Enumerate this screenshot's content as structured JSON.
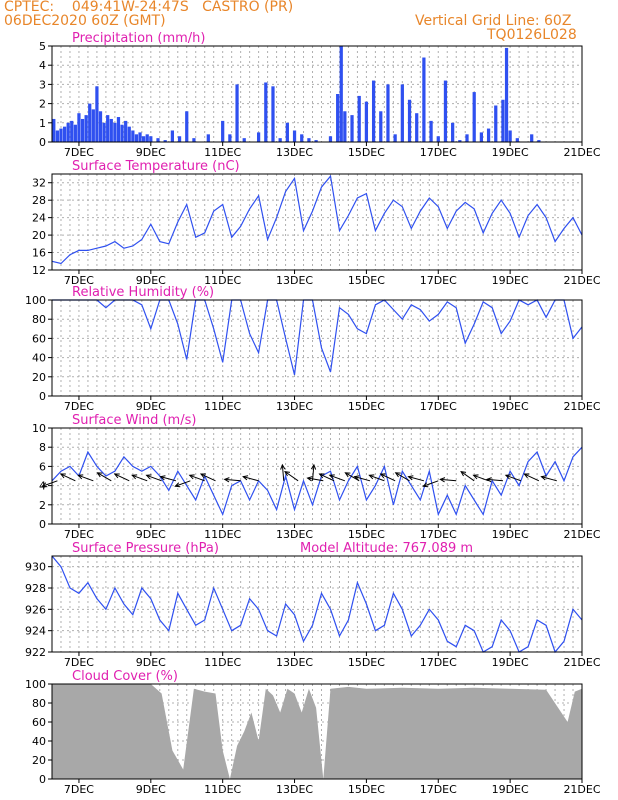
{
  "header": {
    "line1_left": "CPTEC:    049:41W-24:47S   CASTRO (PR)",
    "line2_left": "06DEC2020 60Z (GMT)",
    "line1_right": "Vertical Grid Line: 60Z",
    "line2_right": "TQ0126L028"
  },
  "colors": {
    "header": "#e8862a",
    "title": "#e020b0",
    "series": "#2f50f0",
    "cloud": "#a8a8a8",
    "axis": "#000000"
  },
  "x_tick_labels": [
    "7DEC",
    "9DEC",
    "11DEC",
    "13DEC",
    "15DEC",
    "17DEC",
    "19DEC",
    "21DEC"
  ],
  "chart_data": [
    {
      "type": "bar",
      "title": "Precipitation (mm/h)",
      "ylim": [
        0,
        5
      ],
      "y_ticks": [
        0,
        1,
        2,
        3,
        4,
        5
      ],
      "x_days_range": [
        6.25,
        21
      ],
      "x": [
        6.3,
        6.4,
        6.5,
        6.6,
        6.7,
        6.8,
        6.9,
        7.0,
        7.1,
        7.2,
        7.3,
        7.4,
        7.5,
        7.6,
        7.7,
        7.8,
        7.9,
        8.0,
        8.1,
        8.2,
        8.3,
        8.4,
        8.5,
        8.6,
        8.7,
        8.8,
        8.9,
        9.0,
        9.2,
        9.4,
        9.6,
        9.8,
        10.0,
        10.2,
        10.4,
        10.6,
        10.8,
        11.0,
        11.2,
        11.4,
        11.6,
        11.8,
        12.0,
        12.2,
        12.4,
        12.6,
        12.8,
        13.0,
        13.2,
        13.4,
        13.6,
        13.8,
        14.0,
        14.2,
        14.3,
        14.4,
        14.6,
        14.8,
        15.0,
        15.2,
        15.4,
        15.6,
        15.8,
        16.0,
        16.2,
        16.4,
        16.6,
        16.8,
        17.0,
        17.2,
        17.4,
        17.6,
        17.8,
        18.0,
        18.2,
        18.4,
        18.6,
        18.8,
        18.9,
        19.0,
        19.2,
        19.4,
        19.6,
        19.8,
        20.0
      ],
      "values": [
        1.2,
        0.6,
        0.7,
        0.8,
        1.0,
        1.1,
        0.9,
        1.5,
        1.2,
        1.4,
        2.0,
        1.7,
        2.9,
        1.6,
        1.0,
        1.4,
        1.2,
        1.0,
        1.3,
        0.9,
        1.1,
        0.8,
        0.6,
        0.4,
        0.5,
        0.3,
        0.4,
        0.3,
        0.2,
        0.1,
        0.6,
        0.3,
        1.6,
        0.2,
        0.0,
        0.4,
        0.0,
        1.1,
        0.4,
        3.0,
        0.2,
        0.0,
        0.5,
        3.1,
        2.9,
        0.2,
        1.0,
        0.6,
        0.4,
        0.2,
        0.1,
        0.0,
        0.3,
        2.5,
        5.0,
        1.6,
        1.4,
        2.4,
        2.1,
        3.2,
        1.6,
        3.0,
        0.4,
        3.0,
        2.2,
        1.5,
        4.4,
        1.1,
        0.3,
        3.2,
        1.0,
        0.1,
        0.4,
        2.6,
        0.5,
        0.7,
        1.9,
        2.2,
        4.9,
        0.6,
        0.2,
        0.0,
        0.4,
        0.1,
        0.0
      ]
    },
    {
      "type": "line",
      "title": "Surface Temperature (nC)",
      "ylim": [
        12,
        34
      ],
      "y_ticks": [
        12,
        16,
        20,
        24,
        28,
        32
      ],
      "x_days_range": [
        6.25,
        21
      ],
      "x": [
        6.25,
        6.5,
        6.75,
        7.0,
        7.25,
        7.5,
        7.75,
        8.0,
        8.25,
        8.5,
        8.75,
        9.0,
        9.25,
        9.5,
        9.75,
        10.0,
        10.25,
        10.5,
        10.75,
        11.0,
        11.25,
        11.5,
        11.75,
        12.0,
        12.25,
        12.5,
        12.75,
        13.0,
        13.25,
        13.5,
        13.75,
        14.0,
        14.25,
        14.5,
        14.75,
        15.0,
        15.25,
        15.5,
        15.75,
        16.0,
        16.25,
        16.5,
        16.75,
        17.0,
        17.25,
        17.5,
        17.75,
        18.0,
        18.25,
        18.5,
        18.75,
        19.0,
        19.25,
        19.5,
        19.75,
        20.0,
        20.25,
        20.5,
        20.75,
        21.0
      ],
      "values": [
        14,
        13.5,
        15.5,
        16.5,
        16.5,
        17,
        17.5,
        18.5,
        17,
        17.5,
        19,
        22.5,
        18.5,
        18,
        23,
        27,
        19.5,
        20.5,
        25.5,
        27,
        19.5,
        22,
        26,
        29,
        19,
        24,
        30,
        33,
        21,
        25.5,
        31,
        33.5,
        21,
        24.5,
        28.5,
        29.5,
        21,
        25,
        28,
        26.5,
        21.5,
        25.5,
        28.5,
        26.5,
        21.5,
        25.5,
        27.5,
        26,
        20.5,
        25,
        28,
        25,
        19.5,
        24.5,
        27,
        24,
        18.5,
        21.5,
        24,
        20
      ]
    },
    {
      "type": "line",
      "title": "Relative Humidity (%)",
      "ylim": [
        0,
        100
      ],
      "y_ticks": [
        0,
        20,
        40,
        60,
        80,
        100
      ],
      "x_days_range": [
        6.25,
        21
      ],
      "x": [
        6.25,
        6.5,
        6.75,
        7.0,
        7.25,
        7.5,
        7.75,
        8.0,
        8.25,
        8.5,
        8.75,
        9.0,
        9.25,
        9.5,
        9.75,
        10.0,
        10.25,
        10.5,
        10.75,
        11.0,
        11.25,
        11.5,
        11.75,
        12.0,
        12.25,
        12.5,
        12.75,
        13.0,
        13.25,
        13.5,
        13.75,
        14.0,
        14.25,
        14.5,
        14.75,
        15.0,
        15.25,
        15.5,
        15.75,
        16.0,
        16.25,
        16.5,
        16.75,
        17.0,
        17.25,
        17.5,
        17.75,
        18.0,
        18.25,
        18.5,
        18.75,
        19.0,
        19.25,
        19.5,
        19.75,
        20.0,
        20.25,
        20.5,
        20.75,
        21.0
      ],
      "values": [
        100,
        100,
        100,
        100,
        100,
        100,
        92,
        100,
        100,
        100,
        95,
        70,
        100,
        100,
        75,
        38,
        100,
        100,
        70,
        35,
        100,
        100,
        65,
        45,
        100,
        100,
        60,
        22,
        100,
        100,
        50,
        25,
        92,
        85,
        70,
        65,
        95,
        100,
        90,
        80,
        95,
        90,
        78,
        85,
        98,
        92,
        55,
        75,
        98,
        92,
        65,
        78,
        100,
        95,
        100,
        82,
        100,
        100,
        60,
        72
      ]
    },
    {
      "type": "line",
      "title": "Surface Wind (m/s)",
      "ylim": [
        0,
        10
      ],
      "y_ticks": [
        0,
        2,
        4,
        6,
        8,
        10
      ],
      "x_days_range": [
        6.25,
        21
      ],
      "x": [
        6.25,
        6.5,
        6.75,
        7.0,
        7.25,
        7.5,
        7.75,
        8.0,
        8.25,
        8.5,
        8.75,
        9.0,
        9.25,
        9.5,
        9.75,
        10.0,
        10.25,
        10.5,
        10.75,
        11.0,
        11.25,
        11.5,
        11.75,
        12.0,
        12.25,
        12.5,
        12.75,
        13.0,
        13.25,
        13.5,
        13.75,
        14.0,
        14.25,
        14.5,
        14.75,
        15.0,
        15.25,
        15.5,
        15.75,
        16.0,
        16.25,
        16.5,
        16.75,
        17.0,
        17.25,
        17.5,
        17.75,
        18.0,
        18.25,
        18.5,
        18.75,
        19.0,
        19.25,
        19.5,
        19.75,
        20.0,
        20.25,
        20.5,
        20.75,
        21.0
      ],
      "values": [
        4.5,
        5.5,
        6,
        5,
        7.5,
        6,
        5,
        5.5,
        7,
        6,
        5.5,
        6,
        5,
        3.5,
        5.5,
        4,
        2.5,
        5,
        3,
        1,
        4,
        4.5,
        2.5,
        4.5,
        3.5,
        1.5,
        5,
        1.5,
        4.5,
        2,
        5,
        5.5,
        2.5,
        4.5,
        6,
        2.5,
        4,
        6,
        2,
        5.5,
        4,
        2.5,
        5.5,
        1,
        3,
        1,
        4,
        2.5,
        1,
        4.5,
        3,
        5.5,
        4,
        6.5,
        7.5,
        5,
        6.5,
        4.5,
        7,
        8
      ],
      "vector_angles_deg": [
        200,
        155,
        160,
        150,
        155,
        160,
        160,
        165,
        200,
        160,
        155,
        175,
        165,
        95,
        145,
        85,
        170,
        155,
        160,
        150,
        165,
        160,
        155,
        150,
        165,
        200,
        175,
        145,
        160,
        175,
        160,
        155,
        165
      ],
      "vector_days": [
        6.4,
        6.9,
        7.4,
        7.9,
        8.4,
        8.9,
        9.3,
        9.7,
        10.1,
        10.5,
        10.8,
        11.5,
        12.0,
        12.7,
        13.1,
        13.5,
        13.8,
        14.1,
        14.4,
        14.8,
        15.1,
        15.5,
        15.8,
        16.2,
        16.6,
        17.0,
        17.5,
        18.0,
        18.4,
        18.8,
        19.3,
        19.8,
        20.3
      ]
    },
    {
      "type": "line",
      "title": "Surface Pressure (hPa)",
      "annotation": "Model Altitude: 767.089  m",
      "ylim": [
        922,
        931
      ],
      "y_ticks": [
        922,
        924,
        926,
        928,
        930
      ],
      "x_days_range": [
        6.25,
        21
      ],
      "x": [
        6.25,
        6.5,
        6.75,
        7.0,
        7.25,
        7.5,
        7.75,
        8.0,
        8.25,
        8.5,
        8.75,
        9.0,
        9.25,
        9.5,
        9.75,
        10.0,
        10.25,
        10.5,
        10.75,
        11.0,
        11.25,
        11.5,
        11.75,
        12.0,
        12.25,
        12.5,
        12.75,
        13.0,
        13.25,
        13.5,
        13.75,
        14.0,
        14.25,
        14.5,
        14.75,
        15.0,
        15.25,
        15.5,
        15.75,
        16.0,
        16.25,
        16.5,
        16.75,
        17.0,
        17.25,
        17.5,
        17.75,
        18.0,
        18.25,
        18.5,
        18.75,
        19.0,
        19.25,
        19.5,
        19.75,
        20.0,
        20.25,
        20.5,
        20.75,
        21.0
      ],
      "values": [
        931,
        930,
        928,
        927.5,
        928.5,
        927,
        926,
        928,
        926.5,
        925.5,
        928,
        927,
        925,
        924,
        927.5,
        926,
        924.5,
        925,
        928,
        926,
        924,
        924.5,
        927,
        926,
        924,
        923.5,
        926.5,
        925.5,
        923,
        924.5,
        927.5,
        926,
        923.5,
        925,
        928.5,
        926.5,
        924,
        924.5,
        927.5,
        926,
        923.5,
        924.5,
        926,
        925,
        923,
        922.5,
        924.5,
        924,
        922,
        922.5,
        925,
        924,
        922,
        922.5,
        925,
        924.5,
        922,
        923,
        926,
        925
      ]
    },
    {
      "type": "area",
      "title": "Cloud Cover (%)",
      "ylim": [
        0,
        100
      ],
      "y_ticks": [
        0,
        20,
        40,
        60,
        80,
        100
      ],
      "x_days_range": [
        6.25,
        21
      ],
      "x": [
        6.25,
        9.0,
        9.3,
        9.6,
        9.9,
        10.2,
        10.5,
        10.8,
        11.0,
        11.2,
        11.4,
        11.6,
        11.8,
        12.0,
        12.2,
        12.4,
        12.6,
        12.8,
        13.0,
        13.2,
        13.4,
        13.6,
        13.8,
        14.0,
        14.5,
        15.0,
        16.0,
        17.0,
        18.0,
        19.0,
        20.0,
        20.6,
        20.8,
        21.0
      ],
      "values": [
        100,
        100,
        90,
        30,
        10,
        95,
        92,
        90,
        30,
        0,
        35,
        50,
        70,
        40,
        95,
        88,
        70,
        95,
        90,
        70,
        95,
        75,
        0,
        95,
        97,
        95,
        96,
        95,
        96,
        95,
        94,
        60,
        92,
        95
      ]
    }
  ]
}
